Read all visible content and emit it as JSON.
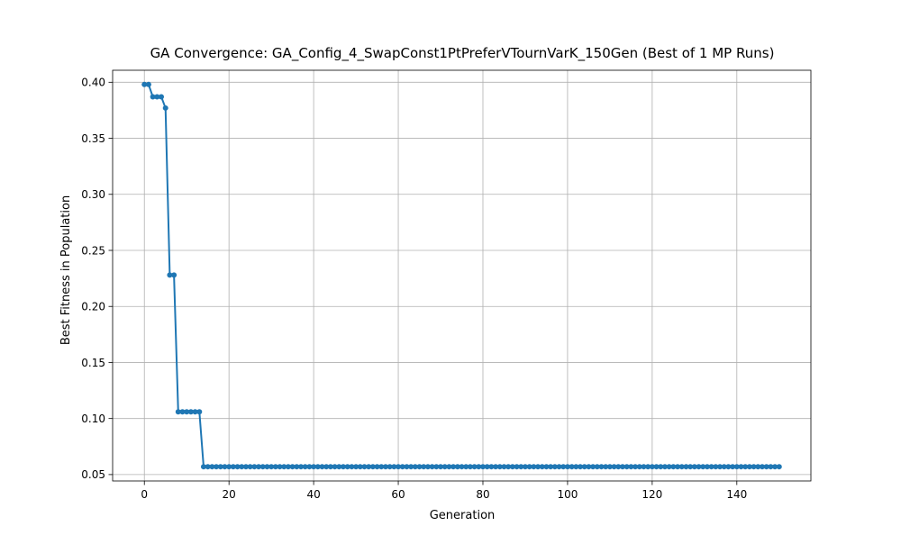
{
  "chart_data": {
    "type": "line",
    "title": "GA Convergence: GA_Config_4_SwapConst1PtPreferVTournVarK_150Gen (Best of 1 MP Runs)",
    "xlabel": "Generation",
    "ylabel": "Best Fitness in Population",
    "xlim": [
      -7.5,
      157.5
    ],
    "ylim": [
      0.0443,
      0.4107
    ],
    "xticks": [
      0,
      20,
      40,
      60,
      80,
      100,
      120,
      140
    ],
    "xtick_labels": [
      "0",
      "20",
      "40",
      "60",
      "80",
      "100",
      "120",
      "140"
    ],
    "yticks": [
      0.05,
      0.1,
      0.15,
      0.2,
      0.25,
      0.3,
      0.35,
      0.4
    ],
    "ytick_labels": [
      "0.05",
      "0.10",
      "0.15",
      "0.20",
      "0.25",
      "0.30",
      "0.35",
      "0.40"
    ],
    "grid": true,
    "legend": "none",
    "line_color": "#1f77b4",
    "marker": "circle",
    "series": [
      {
        "x_start": 0,
        "x_step": 1,
        "values": [
          0.398,
          0.398,
          0.387,
          0.387,
          0.387,
          0.377,
          0.228,
          0.228,
          0.106,
          0.106,
          0.106,
          0.106,
          0.106,
          0.106,
          0.057,
          0.057,
          0.057,
          0.057,
          0.057,
          0.057,
          0.057,
          0.057,
          0.057,
          0.057,
          0.057,
          0.057,
          0.057,
          0.057,
          0.057,
          0.057,
          0.057,
          0.057,
          0.057,
          0.057,
          0.057,
          0.057,
          0.057,
          0.057,
          0.057,
          0.057,
          0.057,
          0.057,
          0.057,
          0.057,
          0.057,
          0.057,
          0.057,
          0.057,
          0.057,
          0.057,
          0.057,
          0.057,
          0.057,
          0.057,
          0.057,
          0.057,
          0.057,
          0.057,
          0.057,
          0.057,
          0.057,
          0.057,
          0.057,
          0.057,
          0.057,
          0.057,
          0.057,
          0.057,
          0.057,
          0.057,
          0.057,
          0.057,
          0.057,
          0.057,
          0.057,
          0.057,
          0.057,
          0.057,
          0.057,
          0.057,
          0.057,
          0.057,
          0.057,
          0.057,
          0.057,
          0.057,
          0.057,
          0.057,
          0.057,
          0.057,
          0.057,
          0.057,
          0.057,
          0.057,
          0.057,
          0.057,
          0.057,
          0.057,
          0.057,
          0.057,
          0.057,
          0.057,
          0.057,
          0.057,
          0.057,
          0.057,
          0.057,
          0.057,
          0.057,
          0.057,
          0.057,
          0.057,
          0.057,
          0.057,
          0.057,
          0.057,
          0.057,
          0.057,
          0.057,
          0.057,
          0.057,
          0.057,
          0.057,
          0.057,
          0.057,
          0.057,
          0.057,
          0.057,
          0.057,
          0.057,
          0.057,
          0.057,
          0.057,
          0.057,
          0.057,
          0.057,
          0.057,
          0.057,
          0.057,
          0.057,
          0.057,
          0.057,
          0.057,
          0.057,
          0.057,
          0.057,
          0.057,
          0.057,
          0.057,
          0.057,
          0.057
        ]
      }
    ]
  }
}
